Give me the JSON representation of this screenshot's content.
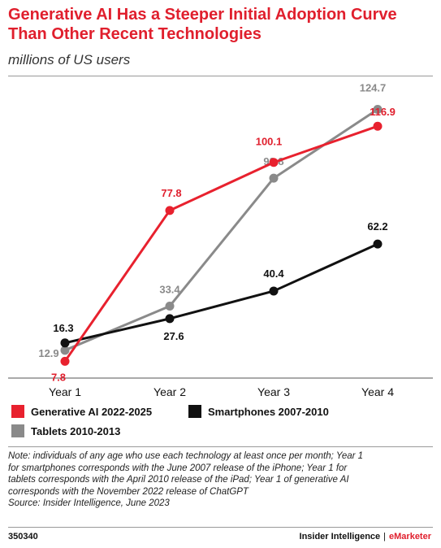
{
  "header": {
    "title": "Generative AI Has a Steeper Initial Adoption Curve Than Other Recent Technologies",
    "subtitle": "millions of US users"
  },
  "chart_data": {
    "type": "line",
    "categories": [
      "Year 1",
      "Year 2",
      "Year 3",
      "Year 4"
    ],
    "ylim": [
      0,
      130
    ],
    "grid": false,
    "legend_placement": "bottom",
    "series": [
      {
        "name": "Tablets 2010-2013",
        "color": "#8a8a8a",
        "label_color": "#8a8a8a",
        "values": [
          12.9,
          33.4,
          92.8,
          124.7
        ],
        "label_text": [
          "12.9",
          "33.4",
          "92.8",
          "124.7"
        ]
      },
      {
        "name": "Smartphones 2007-2010",
        "color": "#111111",
        "label_color": "#111111",
        "values": [
          16.3,
          27.6,
          40.4,
          62.2
        ],
        "label_text": [
          "16.3",
          "27.6",
          "40.4",
          "62.2"
        ]
      },
      {
        "name": "Generative AI 2022-2025",
        "color": "#e8212e",
        "label_color": "#e01f2d",
        "values": [
          7.8,
          77.8,
          100.1,
          116.9
        ],
        "label_text": [
          "7.8",
          "77.8",
          "100.1",
          "116.9"
        ]
      }
    ]
  },
  "legend": {
    "genai": "Generative AI 2022-2025",
    "smartphones": "Smartphones 2007-2010",
    "tablets": "Tablets 2010-2013"
  },
  "note": {
    "lines": [
      "Note: individuals of any age who use each technology at least once per month; Year 1",
      "for smartphones corresponds with the June 2007 release of the iPhone; Year 1 for",
      "tablets corresponds with the April 2010 release of the iPad; Year 1 of generative AI",
      "corresponds with the November 2022 release of ChatGPT",
      "Source: Insider Intelligence, June 2023"
    ]
  },
  "footer": {
    "id": "350340",
    "brand_left": "Insider Intelligence",
    "brand_sep": "|",
    "brand_right": "eMarketer"
  }
}
